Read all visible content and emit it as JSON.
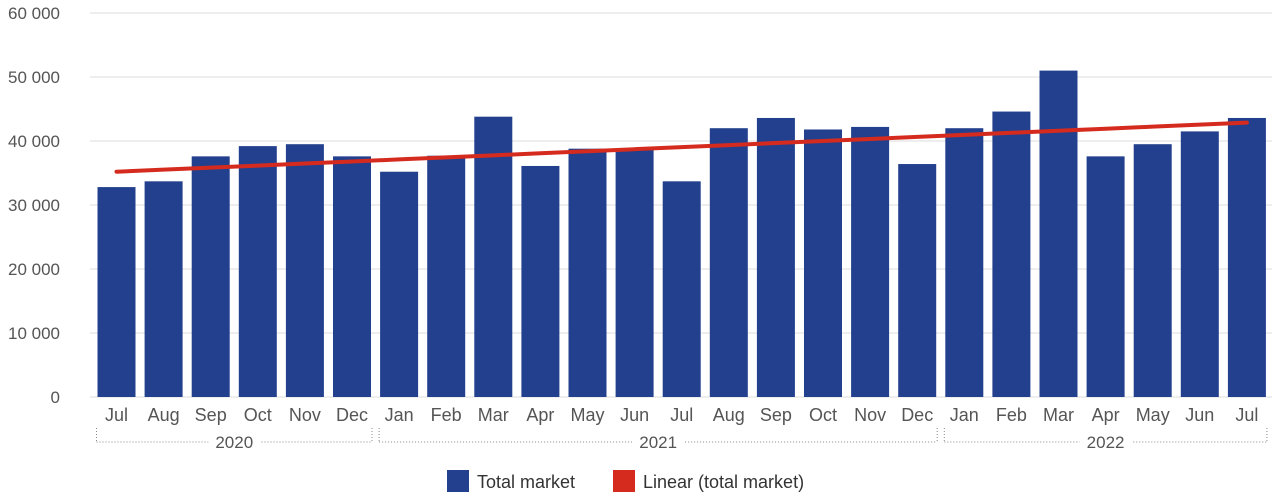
{
  "chart_data": {
    "type": "bar",
    "categories": [
      "Jul",
      "Aug",
      "Sep",
      "Oct",
      "Nov",
      "Dec",
      "Jan",
      "Feb",
      "Mar",
      "Apr",
      "May",
      "Jun",
      "Jul",
      "Aug",
      "Sep",
      "Oct",
      "Nov",
      "Dec",
      "Jan",
      "Feb",
      "Mar",
      "Apr",
      "May",
      "Jun",
      "Jul"
    ],
    "groups": [
      {
        "label": "2020",
        "count": 6
      },
      {
        "label": "2021",
        "count": 12
      },
      {
        "label": "2022",
        "count": 7
      }
    ],
    "series": [
      {
        "name": "Total market",
        "type": "bar",
        "color": "#23408e",
        "values": [
          32800,
          33700,
          37600,
          39200,
          39500,
          37600,
          35200,
          37700,
          43800,
          36100,
          38800,
          38800,
          33700,
          42000,
          43600,
          41800,
          42200,
          36400,
          42000,
          44600,
          51000,
          37600,
          39500,
          41500,
          43600
        ]
      },
      {
        "name": "Linear (total market)",
        "type": "line",
        "color": "#d52b1e",
        "values": [
          35200,
          35520,
          35840,
          36160,
          36480,
          36800,
          37120,
          37440,
          37760,
          38080,
          38400,
          38720,
          39040,
          39360,
          39680,
          40000,
          40320,
          40640,
          40960,
          41280,
          41600,
          41920,
          42240,
          42560,
          42880
        ]
      }
    ],
    "yticks": [
      "0",
      "10 000",
      "20 000",
      "30 000",
      "40 000",
      "50 000",
      "60 000"
    ],
    "ylim": [
      0,
      60000
    ],
    "grid": true,
    "legend_position": "bottom-center"
  }
}
